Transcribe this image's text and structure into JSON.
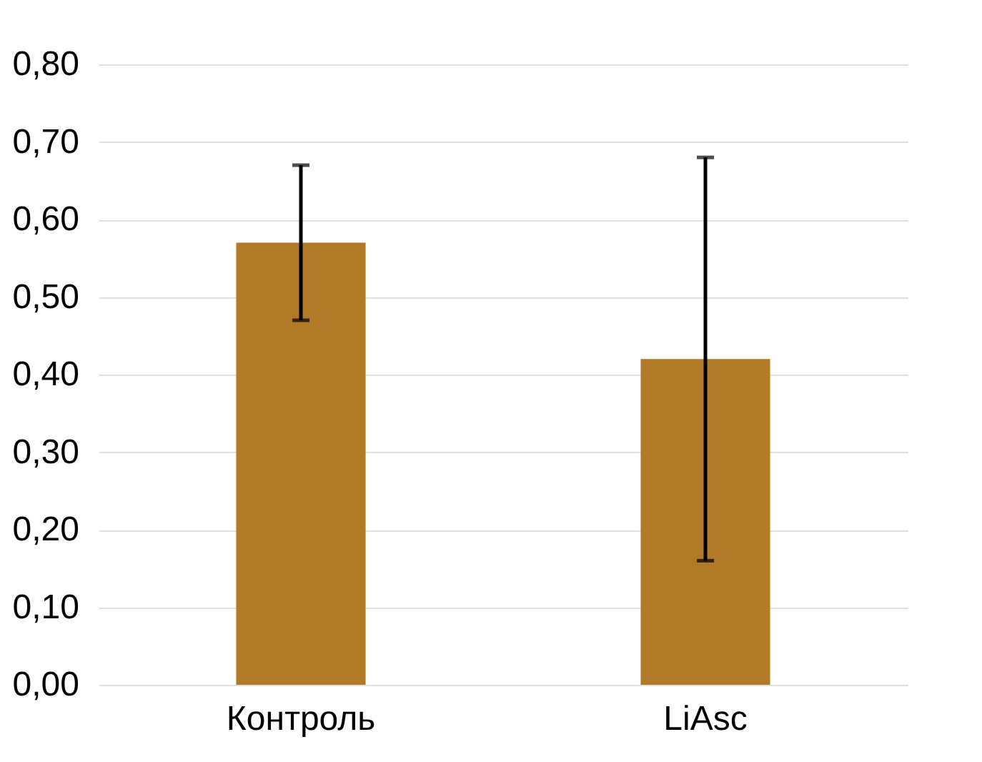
{
  "chart_data": {
    "type": "bar",
    "categories": [
      "Контроль",
      "LiAsc"
    ],
    "values": [
      0.57,
      0.42
    ],
    "errors": [
      0.1,
      0.26
    ],
    "color": "#b07a28",
    "ylim": [
      0,
      0.8
    ],
    "yticks": [
      {
        "value": 0,
        "label": "0,00"
      },
      {
        "value": 0.1,
        "label": "0,10"
      },
      {
        "value": 0.2,
        "label": "0,20"
      },
      {
        "value": 0.3,
        "label": "0,30"
      },
      {
        "value": 0.4,
        "label": "0,40"
      },
      {
        "value": 0.5,
        "label": "0,50"
      },
      {
        "value": 0.6,
        "label": "0,60"
      },
      {
        "value": 0.7,
        "label": "0,70"
      },
      {
        "value": 0.8,
        "label": "0,80"
      }
    ],
    "grid": "y"
  }
}
